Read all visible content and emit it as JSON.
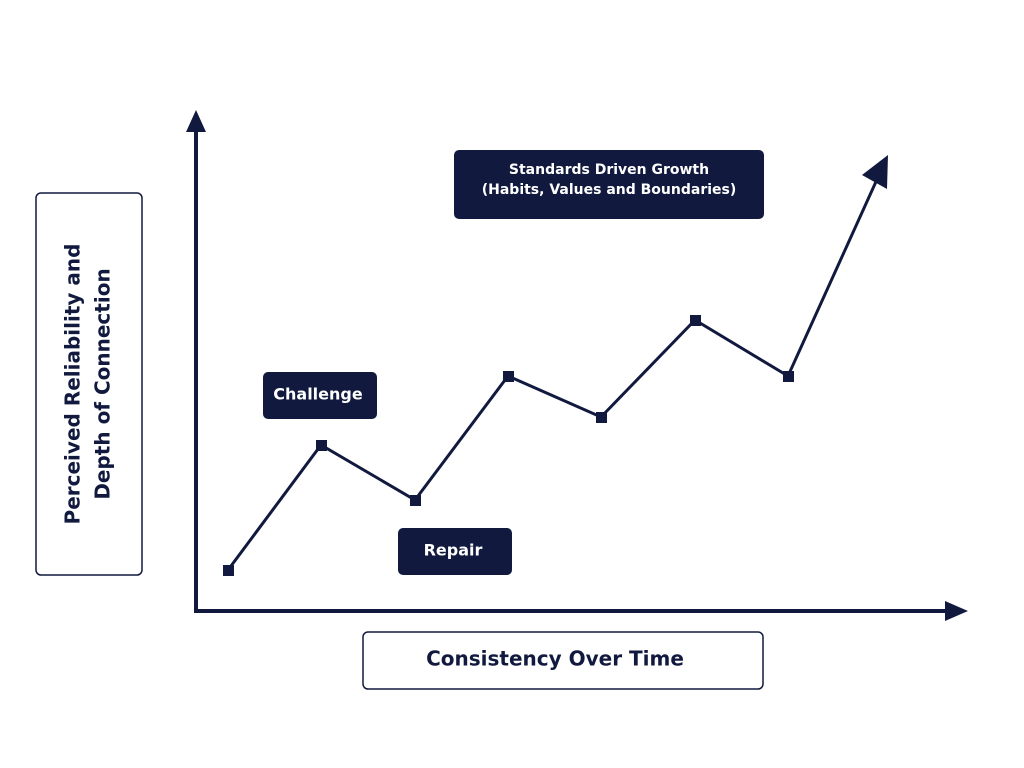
{
  "axes": {
    "y_label": [
      "Perceived Reliability and",
      "Depth of Connection"
    ],
    "x_label": "Consistency Over Time"
  },
  "callouts": {
    "challenge": "Challenge",
    "repair": "Repair",
    "growth": [
      "Standards Driven Growth",
      "(Habits, Values and Boundaries)"
    ]
  }
}
